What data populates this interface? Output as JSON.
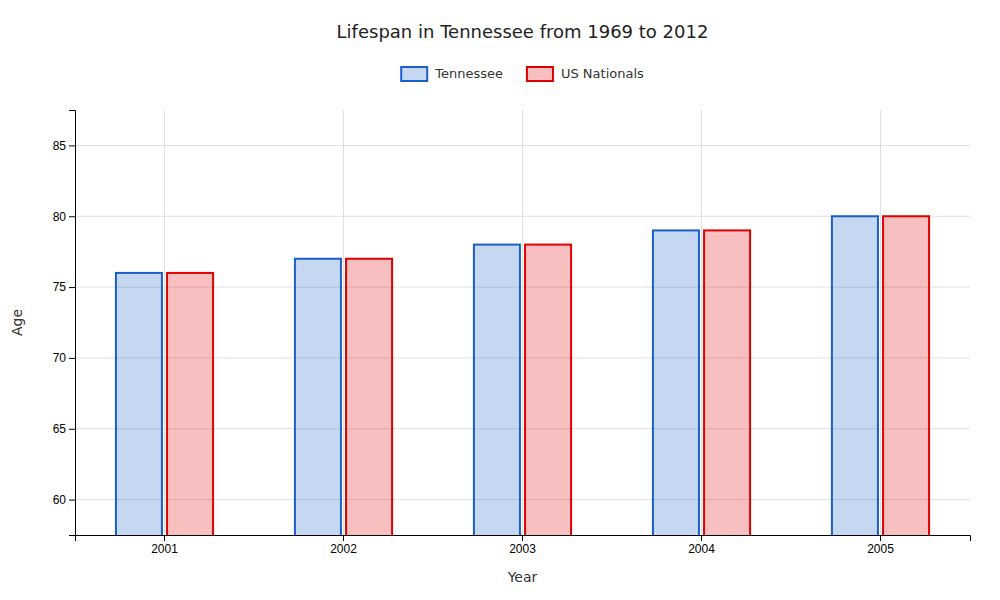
{
  "chart_data": {
    "type": "bar",
    "title": "Lifespan in Tennessee from 1969 to 2012",
    "xlabel": "Year",
    "ylabel": "Age",
    "categories": [
      "2001",
      "2002",
      "2003",
      "2004",
      "2005"
    ],
    "series": [
      {
        "name": "Tennessee",
        "color": "#1a5fc8",
        "values": [
          76,
          77,
          78,
          79,
          80
        ]
      },
      {
        "name": "US Nationals",
        "color": "#e00000",
        "values": [
          76,
          77,
          78,
          79,
          80
        ]
      }
    ],
    "ylim": [
      57.5,
      87.5
    ],
    "yticks": [
      60,
      65,
      70,
      75,
      80,
      85
    ],
    "grid": true,
    "legend": "top"
  }
}
